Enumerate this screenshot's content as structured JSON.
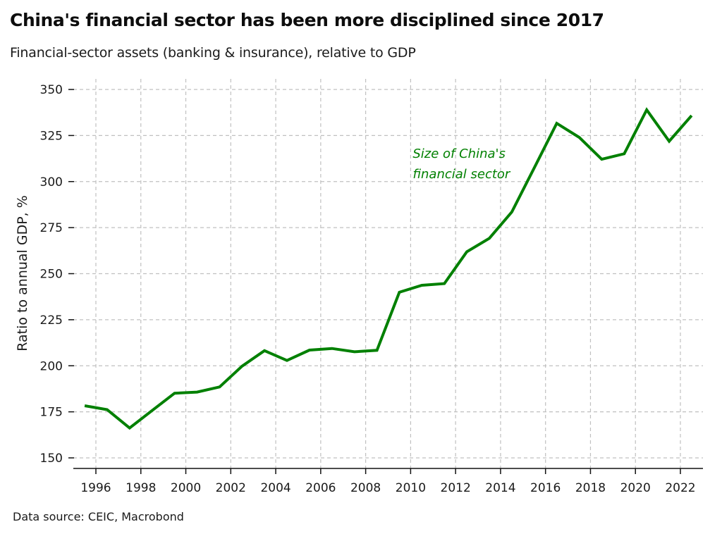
{
  "header": {
    "title": "China's financial sector has been more disciplined since 2017",
    "subtitle": "Financial-sector assets (banking & insurance), relative to GDP"
  },
  "footer": {
    "source": "Data source: CEIC, Macrobond"
  },
  "colors": {
    "line": "#008000",
    "grid": "#c0c0c0",
    "axis": "#111111"
  },
  "chart_data": {
    "type": "line",
    "title": "China's financial sector has been more disciplined since 2017",
    "subtitle": "Financial-sector assets (banking & insurance), relative to GDP",
    "xlabel": "",
    "ylabel": "Ratio to annual GDP, %",
    "xlim": [
      1995.0,
      2023.0
    ],
    "ylim": [
      150,
      350
    ],
    "grid": true,
    "x_ticks": [
      1996,
      1998,
      2000,
      2002,
      2004,
      2006,
      2008,
      2010,
      2012,
      2014,
      2016,
      2018,
      2020,
      2022
    ],
    "x_tick_labels": [
      "1996",
      "1998",
      "2000",
      "2002",
      "2004",
      "2006",
      "2008",
      "2010",
      "2012",
      "2014",
      "2016",
      "2018",
      "2020",
      "2022"
    ],
    "y_ticks": [
      150,
      175,
      200,
      225,
      250,
      275,
      300,
      325,
      350
    ],
    "y_tick_labels": [
      "150",
      "175",
      "200",
      "225",
      "250",
      "275",
      "300",
      "325",
      "350"
    ],
    "annotation": {
      "lines": [
        "Size of China's",
        "financial sector"
      ],
      "x": 2010.0,
      "y": 313
    },
    "series": [
      {
        "name": "Size of China's financial sector",
        "x": [
          1995.5,
          1996.5,
          1997.5,
          1998.5,
          1999.5,
          2000.5,
          2001.5,
          2002.5,
          2003.5,
          2004.5,
          2005.5,
          2006.5,
          2007.5,
          2008.5,
          2009.5,
          2010.5,
          2011.5,
          2012.5,
          2013.5,
          2014.5,
          2015.5,
          2016.5,
          2017.5,
          2018.5,
          2019.5,
          2020.5,
          2021.5,
          2022.5
        ],
        "values": [
          178.3,
          176.2,
          166.2,
          175.7,
          185.1,
          185.7,
          188.5,
          199.8,
          208.2,
          202.9,
          208.5,
          209.4,
          207.6,
          208.4,
          239.9,
          243.7,
          244.6,
          261.9,
          269.2,
          283.5,
          307.5,
          331.6,
          324.0,
          312.1,
          315.1,
          338.9,
          321.9,
          335.8
        ]
      }
    ]
  }
}
